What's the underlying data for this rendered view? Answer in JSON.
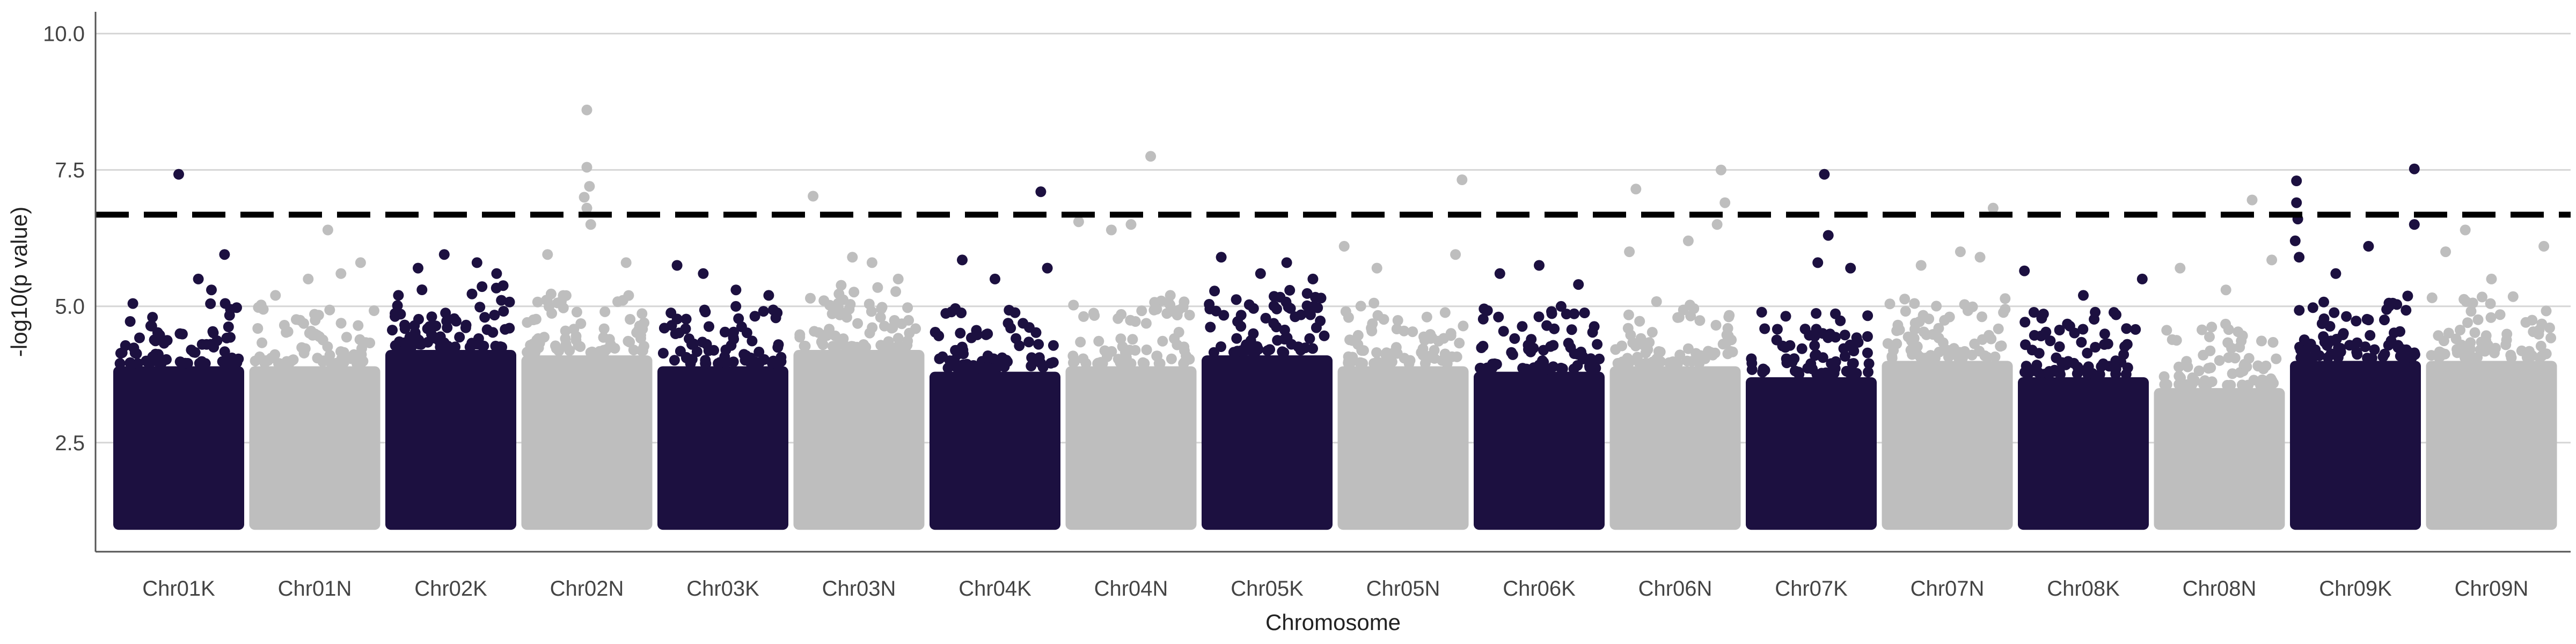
{
  "chart_data": {
    "type": "scatter",
    "title": "",
    "xlabel": "Chromosome",
    "ylabel": "-log10(p value)",
    "ylim": [
      0.5,
      10.4
    ],
    "yticks": [
      2.5,
      5.0,
      7.5,
      10.0
    ],
    "ytick_labels": [
      "2.5",
      "5.0",
      "7.5",
      "10.0"
    ],
    "grid": "horizontal-major",
    "legend": "none",
    "threshold": 6.68,
    "colors": {
      "odd": "#1c1040",
      "even": "#bebebe",
      "threshold": "#000000"
    },
    "categories": [
      "Chr01K",
      "Chr01N",
      "Chr02K",
      "Chr02N",
      "Chr03K",
      "Chr03N",
      "Chr04K",
      "Chr04N",
      "Chr05K",
      "Chr05N",
      "Chr06K",
      "Chr06N",
      "Chr07K",
      "Chr07N",
      "Chr08K",
      "Chr08N",
      "Chr09K",
      "Chr09N"
    ],
    "series": [
      {
        "category": "Chr01K",
        "color": "#1c1040",
        "bulk_min": 1.0,
        "bulk_max": 3.9,
        "top": [
          {
            "x": 0.5,
            "y": 7.42
          },
          {
            "x": 0.85,
            "y": 5.95
          },
          {
            "x": 0.15,
            "y": 5.05
          },
          {
            "x": 0.65,
            "y": 5.5
          },
          {
            "x": 0.3,
            "y": 4.8
          },
          {
            "x": 0.75,
            "y": 5.3
          }
        ]
      },
      {
        "category": "Chr01N",
        "color": "#bebebe",
        "bulk_min": 1.0,
        "bulk_max": 3.9,
        "top": [
          {
            "x": 0.6,
            "y": 6.4
          },
          {
            "x": 0.85,
            "y": 5.8
          },
          {
            "x": 0.45,
            "y": 5.5
          },
          {
            "x": 0.2,
            "y": 5.2
          },
          {
            "x": 0.7,
            "y": 5.6
          }
        ]
      },
      {
        "category": "Chr02K",
        "color": "#1c1040",
        "bulk_min": 1.0,
        "bulk_max": 4.2,
        "top": [
          {
            "x": 0.45,
            "y": 5.95
          },
          {
            "x": 0.7,
            "y": 5.8
          },
          {
            "x": 0.25,
            "y": 5.7
          },
          {
            "x": 0.85,
            "y": 5.6
          },
          {
            "x": 0.1,
            "y": 5.2
          }
        ]
      },
      {
        "category": "Chr02N",
        "color": "#bebebe",
        "bulk_min": 1.0,
        "bulk_max": 4.1,
        "top": [
          {
            "x": 0.5,
            "y": 8.6
          },
          {
            "x": 0.5,
            "y": 7.55
          },
          {
            "x": 0.52,
            "y": 7.2
          },
          {
            "x": 0.48,
            "y": 7.0
          },
          {
            "x": 0.5,
            "y": 6.8
          },
          {
            "x": 0.53,
            "y": 6.5
          },
          {
            "x": 0.2,
            "y": 5.95
          },
          {
            "x": 0.8,
            "y": 5.8
          }
        ]
      },
      {
        "category": "Chr03K",
        "color": "#1c1040",
        "bulk_min": 1.0,
        "bulk_max": 3.9,
        "top": [
          {
            "x": 0.15,
            "y": 5.75
          },
          {
            "x": 0.35,
            "y": 5.6
          },
          {
            "x": 0.6,
            "y": 5.3
          },
          {
            "x": 0.85,
            "y": 5.2
          }
        ]
      },
      {
        "category": "Chr03N",
        "color": "#bebebe",
        "bulk_min": 1.0,
        "bulk_max": 4.2,
        "top": [
          {
            "x": 0.15,
            "y": 7.02
          },
          {
            "x": 0.45,
            "y": 5.9
          },
          {
            "x": 0.6,
            "y": 5.8
          },
          {
            "x": 0.8,
            "y": 5.5
          }
        ]
      },
      {
        "category": "Chr04K",
        "color": "#1c1040",
        "bulk_min": 1.0,
        "bulk_max": 3.8,
        "top": [
          {
            "x": 0.85,
            "y": 7.1
          },
          {
            "x": 0.25,
            "y": 5.85
          },
          {
            "x": 0.5,
            "y": 5.5
          },
          {
            "x": 0.9,
            "y": 5.7
          }
        ]
      },
      {
        "category": "Chr04N",
        "color": "#bebebe",
        "bulk_min": 1.0,
        "bulk_max": 3.9,
        "top": [
          {
            "x": 0.65,
            "y": 7.75
          },
          {
            "x": 0.35,
            "y": 6.4
          },
          {
            "x": 0.5,
            "y": 6.5
          },
          {
            "x": 0.1,
            "y": 6.55
          },
          {
            "x": 0.8,
            "y": 5.2
          }
        ]
      },
      {
        "category": "Chr05K",
        "color": "#1c1040",
        "bulk_min": 1.0,
        "bulk_max": 4.1,
        "top": [
          {
            "x": 0.15,
            "y": 5.9
          },
          {
            "x": 0.65,
            "y": 5.8
          },
          {
            "x": 0.45,
            "y": 5.6
          },
          {
            "x": 0.85,
            "y": 5.5
          }
        ]
      },
      {
        "category": "Chr05N",
        "color": "#bebebe",
        "bulk_min": 1.0,
        "bulk_max": 3.9,
        "top": [
          {
            "x": 0.95,
            "y": 7.32
          },
          {
            "x": 0.05,
            "y": 6.1
          },
          {
            "x": 0.3,
            "y": 5.7
          },
          {
            "x": 0.9,
            "y": 5.95
          }
        ]
      },
      {
        "category": "Chr06K",
        "color": "#1c1040",
        "bulk_min": 1.0,
        "bulk_max": 3.8,
        "top": [
          {
            "x": 0.5,
            "y": 5.75
          },
          {
            "x": 0.2,
            "y": 5.6
          },
          {
            "x": 0.8,
            "y": 5.4
          }
        ]
      },
      {
        "category": "Chr06N",
        "color": "#bebebe",
        "bulk_min": 1.0,
        "bulk_max": 3.9,
        "top": [
          {
            "x": 0.2,
            "y": 7.15
          },
          {
            "x": 0.85,
            "y": 7.5
          },
          {
            "x": 0.88,
            "y": 6.9
          },
          {
            "x": 0.15,
            "y": 6.0
          },
          {
            "x": 0.6,
            "y": 6.2
          },
          {
            "x": 0.82,
            "y": 6.5
          }
        ]
      },
      {
        "category": "Chr07K",
        "color": "#1c1040",
        "bulk_min": 1.0,
        "bulk_max": 3.7,
        "top": [
          {
            "x": 0.6,
            "y": 7.42
          },
          {
            "x": 0.63,
            "y": 6.3
          },
          {
            "x": 0.55,
            "y": 5.8
          },
          {
            "x": 0.8,
            "y": 5.7
          }
        ]
      },
      {
        "category": "Chr07N",
        "color": "#bebebe",
        "bulk_min": 1.0,
        "bulk_max": 4.0,
        "top": [
          {
            "x": 0.85,
            "y": 6.8
          },
          {
            "x": 0.6,
            "y": 6.0
          },
          {
            "x": 0.3,
            "y": 5.75
          },
          {
            "x": 0.75,
            "y": 5.9
          }
        ]
      },
      {
        "category": "Chr08K",
        "color": "#1c1040",
        "bulk_min": 1.0,
        "bulk_max": 3.7,
        "top": [
          {
            "x": 0.05,
            "y": 5.65
          },
          {
            "x": 0.95,
            "y": 5.5
          },
          {
            "x": 0.5,
            "y": 5.2
          }
        ]
      },
      {
        "category": "Chr08N",
        "color": "#bebebe",
        "bulk_min": 1.0,
        "bulk_max": 3.5,
        "top": [
          {
            "x": 0.75,
            "y": 6.95
          },
          {
            "x": 0.2,
            "y": 5.7
          },
          {
            "x": 0.55,
            "y": 5.3
          },
          {
            "x": 0.9,
            "y": 5.85
          }
        ]
      },
      {
        "category": "Chr09K",
        "color": "#1c1040",
        "bulk_min": 1.0,
        "bulk_max": 4.0,
        "top": [
          {
            "x": 0.95,
            "y": 7.52
          },
          {
            "x": 0.95,
            "y": 6.5
          },
          {
            "x": 0.05,
            "y": 7.3
          },
          {
            "x": 0.05,
            "y": 6.9
          },
          {
            "x": 0.06,
            "y": 6.6
          },
          {
            "x": 0.04,
            "y": 6.2
          },
          {
            "x": 0.07,
            "y": 5.9
          },
          {
            "x": 0.6,
            "y": 6.1
          },
          {
            "x": 0.35,
            "y": 5.6
          }
        ]
      },
      {
        "category": "Chr09N",
        "color": "#bebebe",
        "bulk_min": 1.0,
        "bulk_max": 4.0,
        "top": [
          {
            "x": 0.3,
            "y": 6.4
          },
          {
            "x": 0.15,
            "y": 6.0
          },
          {
            "x": 0.9,
            "y": 6.1
          },
          {
            "x": 0.5,
            "y": 5.5
          }
        ]
      }
    ]
  }
}
